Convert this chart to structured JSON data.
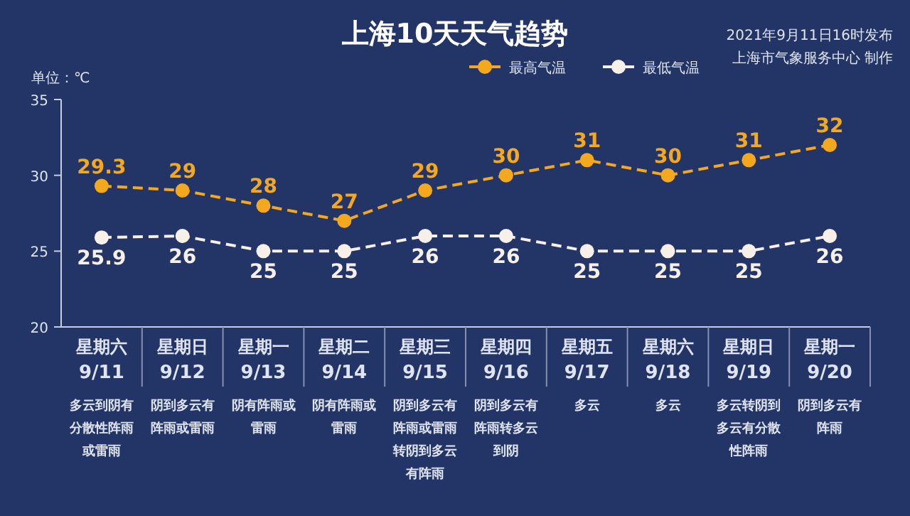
{
  "chart_data": {
    "type": "line",
    "title": "上海10天天气趋势",
    "ylabel": "单位：℃",
    "annotations": [
      "2021年9月11日16时发布",
      "上海市气象服务中心 制作"
    ],
    "categories": [
      "星期六\n9/11\n多云到阴有分散性阵雨或雷雨",
      "星期日\n9/12\n阴到多云有阵雨或雷雨",
      "星期一\n9/13\n阴有阵雨或雷雨",
      "星期二\n9/14\n阴有阵雨或雷雨",
      "星期三\n9/15\n阴到多云有阵雨或雷雨转阴到多云有阵雨",
      "星期四\n9/16\n阴到多云有阵雨转多云到阴",
      "星期五\n9/17\n多云",
      "星期六\n9/18\n多云",
      "星期日\n9/19\n多云转阴到多云有分散性阵雨",
      "星期一\n9/20\n阴到多云有阵雨"
    ],
    "series": [
      {
        "name": "最高气温",
        "color": "#f4a81d",
        "values": [
          29.3,
          29,
          28,
          27,
          29,
          30,
          31,
          30,
          31,
          32
        ]
      },
      {
        "name": "最低气温",
        "color": "#f6f0e8",
        "values": [
          25.9,
          26,
          25,
          25,
          26,
          26,
          25,
          25,
          25,
          26
        ]
      }
    ],
    "ylim": [
      20,
      35
    ],
    "yticks": [
      20,
      25,
      30,
      35
    ],
    "data_labels": true,
    "legend": "top right",
    "marker": "circle",
    "line_style": "dashed",
    "grid": false
  }
}
